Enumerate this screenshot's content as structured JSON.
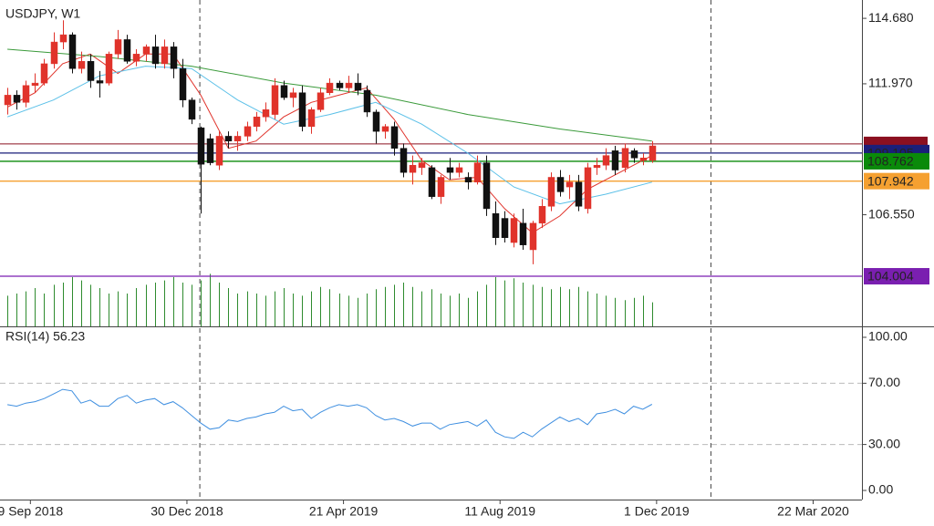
{
  "chart_data": {
    "type": "candlestick",
    "title": "USDJPY, W1",
    "xlim": [
      -0.8,
      92.8
    ],
    "xticks": [
      {
        "value": 2.5,
        "label": "9 Sep 2018"
      },
      {
        "value": 19.5,
        "label": "30 Dec 2018"
      },
      {
        "value": 36.5,
        "label": "21 Apr 2019"
      },
      {
        "value": 53.5,
        "label": "11 Aug 2019"
      },
      {
        "value": 70.5,
        "label": "1 Dec 2019"
      },
      {
        "value": 87.5,
        "label": "22 Mar 2020"
      }
    ],
    "separators": [
      20.9,
      76.4
    ],
    "ylim": [
      101.93,
      115.25
    ],
    "yticks": [
      {
        "value": 114.68,
        "label": "114.680"
      },
      {
        "value": 111.97,
        "label": "111.970"
      },
      {
        "value": 106.55,
        "label": "106.550"
      }
    ],
    "up_color": "#e0332b",
    "down_color": "#111111",
    "lines": [
      {
        "value": 109.48,
        "color": "#8b1020"
      }
    ],
    "levels": [
      {
        "value": 109.105,
        "color": "#1a1f7a"
      },
      {
        "value": 108.762,
        "color": "#0a8a0a"
      },
      {
        "value": 107.942,
        "color": "#f5a030"
      },
      {
        "value": 104.004,
        "color": "#7a1fb0"
      }
    ],
    "candles": {
      "open": [
        111.1,
        111.5,
        111.2,
        111.9,
        112.0,
        112.8,
        113.7,
        114.0,
        112.6,
        112.9,
        112.1,
        112.0,
        113.2,
        113.8,
        112.9,
        113.2,
        113.5,
        112.8,
        113.5,
        112.6,
        111.3,
        110.15,
        109.7,
        108.6,
        109.8,
        109.6,
        109.8,
        110.2,
        110.6,
        110.7,
        111.9,
        111.4,
        111.6,
        110.2,
        110.9,
        111.6,
        112.0,
        111.8,
        112.0,
        111.7,
        110.8,
        110.0,
        110.2,
        109.3,
        108.3,
        108.5,
        108.5,
        107.3,
        108.5,
        108.3,
        108.1,
        107.9,
        108.7,
        106.6,
        106.4,
        105.4,
        106.2,
        105.1,
        106.2,
        106.9,
        108.1,
        107.7,
        107.9,
        106.8,
        108.5,
        108.6,
        109.2,
        108.5,
        109.2,
        108.8,
        108.8
      ],
      "high": [
        111.8,
        111.7,
        112.1,
        112.4,
        113.0,
        114.1,
        114.6,
        114.1,
        113.3,
        113.2,
        112.5,
        113.3,
        114.2,
        114.0,
        113.4,
        113.6,
        114.0,
        113.8,
        113.7,
        113.0,
        111.4,
        110.2,
        109.9,
        110.0,
        110.0,
        110.0,
        110.4,
        110.8,
        111.2,
        112.2,
        112.1,
        111.8,
        111.9,
        111.0,
        111.8,
        112.2,
        112.1,
        112.3,
        112.4,
        111.9,
        110.9,
        110.3,
        110.4,
        109.5,
        109.0,
        108.9,
        108.6,
        108.2,
        108.9,
        108.7,
        108.3,
        109.0,
        109.0,
        107.1,
        106.7,
        106.6,
        106.8,
        106.3,
        107.2,
        108.3,
        108.4,
        108.2,
        108.2,
        108.7,
        108.9,
        109.3,
        109.4,
        109.5,
        109.3,
        109.1,
        109.6
      ],
      "low": [
        110.7,
        110.9,
        111.0,
        111.6,
        111.9,
        112.6,
        113.4,
        112.4,
        112.4,
        111.8,
        111.4,
        111.9,
        113.0,
        112.8,
        112.7,
        112.9,
        112.6,
        112.6,
        112.2,
        111.0,
        110.3,
        106.6,
        108.6,
        108.4,
        109.3,
        109.2,
        109.6,
        110.0,
        110.4,
        110.5,
        111.3,
        111.0,
        110.0,
        109.9,
        110.8,
        111.5,
        111.7,
        111.6,
        111.5,
        110.6,
        109.5,
        109.7,
        109.0,
        108.1,
        107.8,
        108.2,
        107.2,
        107.0,
        108.0,
        108.1,
        107.6,
        107.8,
        106.5,
        105.3,
        105.4,
        105.2,
        105.1,
        104.5,
        106.0,
        106.7,
        107.3,
        107.2,
        106.7,
        106.6,
        108.2,
        108.4,
        108.2,
        108.3,
        108.7,
        108.6,
        108.7
      ],
      "close": [
        111.5,
        111.2,
        111.9,
        112.0,
        112.8,
        113.7,
        114.0,
        112.6,
        112.9,
        112.1,
        112.0,
        113.2,
        113.8,
        112.9,
        113.2,
        113.5,
        112.8,
        113.5,
        112.6,
        111.3,
        110.5,
        108.64,
        108.7,
        109.8,
        109.6,
        109.8,
        110.2,
        110.6,
        110.9,
        111.9,
        111.4,
        111.6,
        110.2,
        110.9,
        111.6,
        112.0,
        111.8,
        112.0,
        111.7,
        110.8,
        110.0,
        110.2,
        109.3,
        108.3,
        108.6,
        108.7,
        107.3,
        108.1,
        108.3,
        108.5,
        107.9,
        108.7,
        106.8,
        105.6,
        105.6,
        106.4,
        105.3,
        106.2,
        106.9,
        108.1,
        107.5,
        107.9,
        106.9,
        108.5,
        108.6,
        109.0,
        108.4,
        109.3,
        108.9,
        108.9,
        109.4
      ]
    },
    "ma": [
      {
        "color": "#e0332b",
        "x": [
          0,
          3,
          6,
          9,
          12,
          15,
          18,
          21,
          24,
          27,
          30,
          33,
          36,
          39,
          42,
          45,
          48,
          51,
          54,
          57,
          60,
          63,
          66,
          69,
          70
        ],
        "values": [
          111.0,
          111.6,
          112.8,
          113.2,
          112.4,
          113.2,
          113.2,
          111.5,
          109.3,
          109.6,
          110.6,
          111.2,
          111.5,
          111.8,
          110.5,
          108.8,
          108.0,
          108.1,
          106.8,
          105.8,
          106.5,
          107.6,
          108.2,
          108.8,
          109.0
        ]
      },
      {
        "color": "#5bc0e8",
        "x": [
          0,
          5,
          10,
          15,
          20,
          25,
          30,
          35,
          40,
          45,
          50,
          55,
          60,
          65,
          70
        ],
        "values": [
          110.6,
          111.3,
          112.3,
          112.7,
          112.6,
          111.3,
          110.3,
          110.7,
          111.2,
          110.3,
          109.1,
          107.7,
          107.0,
          107.4,
          107.9
        ]
      },
      {
        "color": "#3a9a3a",
        "x": [
          0,
          10,
          20,
          30,
          40,
          50,
          60,
          70
        ],
        "values": [
          113.4,
          113.1,
          112.7,
          112.0,
          111.5,
          110.7,
          110.1,
          109.6
        ]
      }
    ],
    "volume": {
      "color": "#2e8b2e",
      "ylim": [
        0,
        50
      ],
      "values": [
        28,
        30,
        32,
        35,
        30,
        38,
        40,
        45,
        42,
        38,
        35,
        30,
        32,
        30,
        35,
        38,
        40,
        42,
        45,
        40,
        38,
        42,
        48,
        40,
        35,
        30,
        32,
        30,
        28,
        32,
        35,
        30,
        28,
        32,
        36,
        34,
        30,
        28,
        26,
        30,
        34,
        36,
        38,
        40,
        36,
        32,
        34,
        30,
        28,
        30,
        26,
        32,
        38,
        45,
        42,
        44,
        40,
        38,
        36,
        34,
        36,
        34,
        36,
        32,
        30,
        28,
        26,
        24,
        26,
        28,
        22
      ]
    },
    "rsi": {
      "title": "RSI(14) 56.23",
      "color": "#3f8fe0",
      "ylim": [
        -5.95,
        105.95
      ],
      "yticks": [
        {
          "value": 100,
          "label": "100.00"
        },
        {
          "value": 70,
          "label": "70.00"
        },
        {
          "value": 30,
          "label": "30.00"
        },
        {
          "value": 0,
          "label": "0.00"
        }
      ],
      "levels": [
        70,
        30
      ],
      "values": [
        56,
        55,
        57,
        58,
        60,
        63,
        66,
        65,
        57,
        59,
        55,
        55,
        60,
        62,
        57,
        59,
        60,
        56,
        58,
        54,
        49,
        44,
        40,
        41,
        46,
        45,
        47,
        48,
        50,
        51,
        55,
        52,
        53,
        47,
        51,
        54,
        56,
        55,
        56,
        54,
        49,
        46,
        47,
        45,
        42,
        44,
        44,
        40,
        43,
        44,
        45,
        42,
        46,
        38,
        35,
        34,
        38,
        35,
        40,
        44,
        48,
        45,
        47,
        43,
        50,
        51,
        53,
        50,
        55,
        53,
        56.23
      ]
    }
  }
}
